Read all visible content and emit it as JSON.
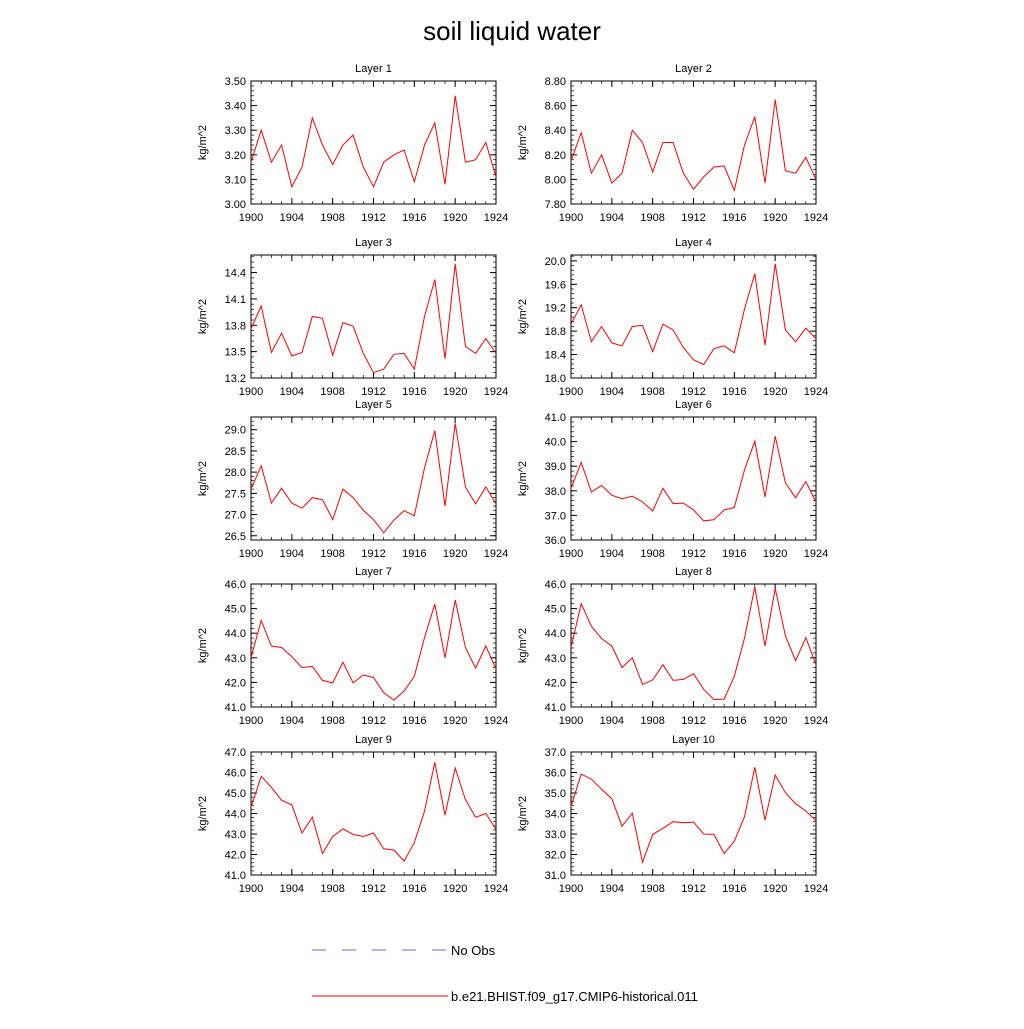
{
  "title": "soil liquid water",
  "legend": {
    "no_obs_label": "No Obs",
    "no_obs_color": "#5b6fd6",
    "model_label": "b.e21.BHIST.f09_g17.CMIP6-historical.011",
    "model_color": "#ff0000"
  },
  "chart_data": [
    {
      "type": "line",
      "title": "Layer 1",
      "ylabel": "kg/m^2",
      "xlim": [
        1900,
        1924
      ],
      "ylim": [
        3.0,
        3.5
      ],
      "yticks": [
        3.0,
        3.1,
        3.2,
        3.3,
        3.4,
        3.5
      ],
      "ytick_labels": [
        "3.00",
        "3.10",
        "3.20",
        "3.30",
        "3.40",
        "3.50"
      ],
      "xticks": [
        1900,
        1904,
        1908,
        1912,
        1916,
        1920,
        1924
      ],
      "x": [
        1900,
        1901,
        1902,
        1903,
        1904,
        1905,
        1906,
        1907,
        1908,
        1909,
        1910,
        1911,
        1912,
        1913,
        1914,
        1915,
        1916,
        1917,
        1918,
        1919,
        1920,
        1921,
        1922,
        1923,
        1924
      ],
      "series": [
        {
          "name": "b.e21.BHIST.f09_g17.CMIP6-historical.011",
          "values": [
            3.17,
            3.3,
            3.17,
            3.24,
            3.07,
            3.15,
            3.35,
            3.24,
            3.16,
            3.24,
            3.28,
            3.15,
            3.07,
            3.17,
            3.2,
            3.22,
            3.09,
            3.24,
            3.33,
            3.08,
            3.44,
            3.17,
            3.18,
            3.25,
            3.11
          ]
        }
      ]
    },
    {
      "type": "line",
      "title": "Layer 2",
      "ylabel": "kg/m^2",
      "xlim": [
        1900,
        1924
      ],
      "ylim": [
        7.8,
        8.8
      ],
      "yticks": [
        7.8,
        8.0,
        8.2,
        8.4,
        8.6,
        8.8
      ],
      "ytick_labels": [
        "7.80",
        "8.00",
        "8.20",
        "8.40",
        "8.60",
        "8.80"
      ],
      "xticks": [
        1900,
        1904,
        1908,
        1912,
        1916,
        1920,
        1924
      ],
      "x": [
        1900,
        1901,
        1902,
        1903,
        1904,
        1905,
        1906,
        1907,
        1908,
        1909,
        1910,
        1911,
        1912,
        1913,
        1914,
        1915,
        1916,
        1917,
        1918,
        1919,
        1920,
        1921,
        1922,
        1923,
        1924
      ],
      "series": [
        {
          "name": "b.e21.BHIST.f09_g17.CMIP6-historical.011",
          "values": [
            8.15,
            8.38,
            8.05,
            8.2,
            7.97,
            8.05,
            8.4,
            8.3,
            8.06,
            8.3,
            8.3,
            8.05,
            7.92,
            8.02,
            8.1,
            8.11,
            7.91,
            8.28,
            8.51,
            7.97,
            8.65,
            8.07,
            8.05,
            8.18,
            8.0
          ]
        }
      ]
    },
    {
      "type": "line",
      "title": "Layer 3",
      "ylabel": "kg/m^2",
      "xlim": [
        1900,
        1924
      ],
      "ylim": [
        13.2,
        14.6
      ],
      "yticks": [
        13.2,
        13.5,
        13.8,
        14.1,
        14.4
      ],
      "ytick_labels": [
        "13.2",
        "13.5",
        "13.8",
        "14.1",
        "14.4"
      ],
      "xticks": [
        1900,
        1904,
        1908,
        1912,
        1916,
        1920,
        1924
      ],
      "x": [
        1900,
        1901,
        1902,
        1903,
        1904,
        1905,
        1906,
        1907,
        1908,
        1909,
        1910,
        1911,
        1912,
        1913,
        1914,
        1915,
        1916,
        1917,
        1918,
        1919,
        1920,
        1921,
        1922,
        1923,
        1924
      ],
      "series": [
        {
          "name": "b.e21.BHIST.f09_g17.CMIP6-historical.011",
          "values": [
            13.76,
            14.02,
            13.49,
            13.71,
            13.45,
            13.49,
            13.9,
            13.88,
            13.46,
            13.83,
            13.79,
            13.48,
            13.26,
            13.3,
            13.47,
            13.48,
            13.3,
            13.9,
            14.32,
            13.42,
            14.5,
            13.56,
            13.48,
            13.65,
            13.48
          ]
        }
      ]
    },
    {
      "type": "line",
      "title": "Layer 4",
      "ylabel": "kg/m^2",
      "xlim": [
        1900,
        1924
      ],
      "ylim": [
        18.0,
        20.1
      ],
      "yticks": [
        18.0,
        18.4,
        18.8,
        19.2,
        19.6,
        20.0
      ],
      "ytick_labels": [
        "18.0",
        "18.4",
        "18.8",
        "19.2",
        "19.6",
        "20.0"
      ],
      "xticks": [
        1900,
        1904,
        1908,
        1912,
        1916,
        1920,
        1924
      ],
      "x": [
        1900,
        1901,
        1902,
        1903,
        1904,
        1905,
        1906,
        1907,
        1908,
        1909,
        1910,
        1911,
        1912,
        1913,
        1914,
        1915,
        1916,
        1917,
        1918,
        1919,
        1920,
        1921,
        1922,
        1923,
        1924
      ],
      "series": [
        {
          "name": "b.e21.BHIST.f09_g17.CMIP6-historical.011",
          "values": [
            18.92,
            19.25,
            18.62,
            18.88,
            18.6,
            18.55,
            18.88,
            18.9,
            18.45,
            18.92,
            18.82,
            18.52,
            18.31,
            18.23,
            18.5,
            18.55,
            18.43,
            19.18,
            19.78,
            18.56,
            19.95,
            18.82,
            18.62,
            18.85,
            18.67
          ]
        }
      ]
    },
    {
      "type": "line",
      "title": "Layer 5",
      "ylabel": "kg/m^2",
      "xlim": [
        1900,
        1924
      ],
      "ylim": [
        26.4,
        29.3
      ],
      "yticks": [
        26.5,
        27.0,
        27.5,
        28.0,
        28.5,
        29.0
      ],
      "ytick_labels": [
        "26.5",
        "27.0",
        "27.5",
        "28.0",
        "28.5",
        "29.0"
      ],
      "xticks": [
        1900,
        1904,
        1908,
        1912,
        1916,
        1920,
        1924
      ],
      "x": [
        1900,
        1901,
        1902,
        1903,
        1904,
        1905,
        1906,
        1907,
        1908,
        1909,
        1910,
        1911,
        1912,
        1913,
        1914,
        1915,
        1916,
        1917,
        1918,
        1919,
        1920,
        1921,
        1922,
        1923,
        1924
      ],
      "series": [
        {
          "name": "b.e21.BHIST.f09_g17.CMIP6-historical.011",
          "values": [
            27.6,
            28.15,
            27.27,
            27.62,
            27.27,
            27.15,
            27.4,
            27.35,
            26.88,
            27.6,
            27.4,
            27.1,
            26.88,
            26.57,
            26.87,
            27.09,
            26.97,
            28.1,
            28.98,
            27.2,
            29.15,
            27.65,
            27.25,
            27.65,
            27.25
          ]
        }
      ]
    },
    {
      "type": "line",
      "title": "Layer 6",
      "ylabel": "kg/m^2",
      "xlim": [
        1900,
        1924
      ],
      "ylim": [
        36.0,
        41.0
      ],
      "yticks": [
        36.0,
        37.0,
        38.0,
        39.0,
        40.0,
        41.0
      ],
      "ytick_labels": [
        "36.0",
        "37.0",
        "38.0",
        "39.0",
        "40.0",
        "41.0"
      ],
      "xticks": [
        1900,
        1904,
        1908,
        1912,
        1916,
        1920,
        1924
      ],
      "x": [
        1900,
        1901,
        1902,
        1903,
        1904,
        1905,
        1906,
        1907,
        1908,
        1909,
        1910,
        1911,
        1912,
        1913,
        1914,
        1915,
        1916,
        1917,
        1918,
        1919,
        1920,
        1921,
        1922,
        1923,
        1924
      ],
      "series": [
        {
          "name": "b.e21.BHIST.f09_g17.CMIP6-historical.011",
          "values": [
            38.1,
            39.15,
            37.95,
            38.22,
            37.82,
            37.68,
            37.78,
            37.55,
            37.18,
            38.1,
            37.48,
            37.5,
            37.22,
            36.78,
            36.82,
            37.22,
            37.32,
            38.85,
            40.02,
            37.75,
            40.22,
            38.32,
            37.72,
            38.38,
            37.55
          ]
        }
      ]
    },
    {
      "type": "line",
      "title": "Layer 7",
      "ylabel": "kg/m^2",
      "xlim": [
        1900,
        1924
      ],
      "ylim": [
        41.0,
        46.0
      ],
      "yticks": [
        41.0,
        42.0,
        43.0,
        44.0,
        45.0,
        46.0
      ],
      "ytick_labels": [
        "41.0",
        "42.0",
        "43.0",
        "44.0",
        "45.0",
        "46.0"
      ],
      "xticks": [
        1900,
        1904,
        1908,
        1912,
        1916,
        1920,
        1924
      ],
      "x": [
        1900,
        1901,
        1902,
        1903,
        1904,
        1905,
        1906,
        1907,
        1908,
        1909,
        1910,
        1911,
        1912,
        1913,
        1914,
        1915,
        1916,
        1917,
        1918,
        1919,
        1920,
        1921,
        1922,
        1923,
        1924
      ],
      "series": [
        {
          "name": "b.e21.BHIST.f09_g17.CMIP6-historical.011",
          "values": [
            43.0,
            44.52,
            43.48,
            43.42,
            43.05,
            42.6,
            42.65,
            42.08,
            41.98,
            42.82,
            41.98,
            42.3,
            42.2,
            41.58,
            41.28,
            41.65,
            42.25,
            43.82,
            45.18,
            43.0,
            45.35,
            43.42,
            42.58,
            43.48,
            42.55
          ]
        }
      ]
    },
    {
      "type": "line",
      "title": "Layer 8",
      "ylabel": "kg/m^2",
      "xlim": [
        1900,
        1924
      ],
      "ylim": [
        41.0,
        46.0
      ],
      "yticks": [
        41.0,
        42.0,
        43.0,
        44.0,
        45.0,
        46.0
      ],
      "ytick_labels": [
        "41.0",
        "42.0",
        "43.0",
        "44.0",
        "45.0",
        "46.0"
      ],
      "xticks": [
        1900,
        1904,
        1908,
        1912,
        1916,
        1920,
        1924
      ],
      "x": [
        1900,
        1901,
        1902,
        1903,
        1904,
        1905,
        1906,
        1907,
        1908,
        1909,
        1910,
        1911,
        1912,
        1913,
        1914,
        1915,
        1916,
        1917,
        1918,
        1919,
        1920,
        1921,
        1922,
        1923,
        1924
      ],
      "series": [
        {
          "name": "b.e21.BHIST.f09_g17.CMIP6-historical.011",
          "values": [
            43.42,
            45.2,
            44.28,
            43.78,
            43.48,
            42.6,
            43.0,
            41.92,
            42.1,
            42.72,
            42.08,
            42.12,
            42.35,
            41.72,
            41.3,
            41.32,
            42.25,
            43.8,
            45.88,
            43.48,
            45.82,
            43.9,
            42.88,
            43.82,
            42.72
          ]
        }
      ]
    },
    {
      "type": "line",
      "title": "Layer 9",
      "ylabel": "kg/m^2",
      "xlim": [
        1900,
        1924
      ],
      "ylim": [
        41.0,
        47.0
      ],
      "yticks": [
        41.0,
        42.0,
        43.0,
        44.0,
        45.0,
        46.0,
        47.0
      ],
      "ytick_labels": [
        "41.0",
        "42.0",
        "43.0",
        "44.0",
        "45.0",
        "46.0",
        "47.0"
      ],
      "xticks": [
        1900,
        1904,
        1908,
        1912,
        1916,
        1920,
        1924
      ],
      "x": [
        1900,
        1901,
        1902,
        1903,
        1904,
        1905,
        1906,
        1907,
        1908,
        1909,
        1910,
        1911,
        1912,
        1913,
        1914,
        1915,
        1916,
        1917,
        1918,
        1919,
        1920,
        1921,
        1922,
        1923,
        1924
      ],
      "series": [
        {
          "name": "b.e21.BHIST.f09_g17.CMIP6-historical.011",
          "values": [
            44.3,
            45.82,
            45.28,
            44.65,
            44.42,
            43.05,
            43.82,
            42.05,
            42.88,
            43.25,
            42.98,
            42.88,
            43.05,
            42.28,
            42.22,
            41.68,
            42.58,
            44.1,
            46.5,
            43.92,
            46.22,
            44.68,
            43.82,
            44.0,
            43.22
          ]
        }
      ]
    },
    {
      "type": "line",
      "title": "Layer 10",
      "ylabel": "kg/m^2",
      "xlim": [
        1900,
        1924
      ],
      "ylim": [
        31.0,
        37.0
      ],
      "yticks": [
        31.0,
        32.0,
        33.0,
        34.0,
        35.0,
        36.0,
        37.0
      ],
      "ytick_labels": [
        "31.0",
        "32.0",
        "33.0",
        "34.0",
        "35.0",
        "36.0",
        "37.0"
      ],
      "xticks": [
        1900,
        1904,
        1908,
        1912,
        1916,
        1920,
        1924
      ],
      "x": [
        1900,
        1901,
        1902,
        1903,
        1904,
        1905,
        1906,
        1907,
        1908,
        1909,
        1910,
        1911,
        1912,
        1913,
        1914,
        1915,
        1916,
        1917,
        1918,
        1919,
        1920,
        1921,
        1922,
        1923,
        1924
      ],
      "series": [
        {
          "name": "b.e21.BHIST.f09_g17.CMIP6-historical.011",
          "values": [
            34.35,
            35.92,
            35.68,
            35.18,
            34.72,
            33.38,
            34.02,
            31.62,
            32.98,
            33.28,
            33.6,
            33.55,
            33.58,
            33.0,
            32.98,
            32.05,
            32.65,
            33.85,
            36.25,
            33.68,
            35.88,
            35.02,
            34.48,
            34.12,
            33.65
          ]
        }
      ]
    }
  ]
}
